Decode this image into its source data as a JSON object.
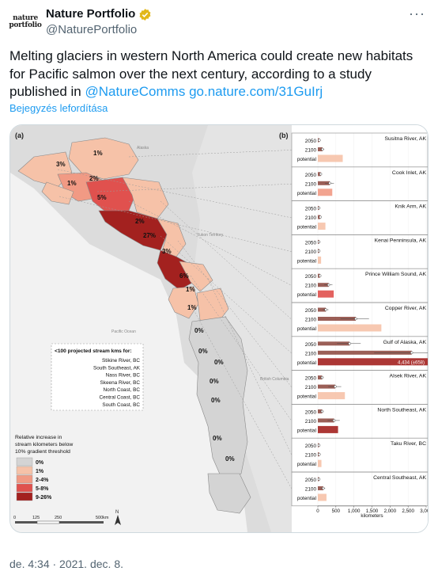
{
  "tweet": {
    "avatar_top": "nature",
    "avatar_bottom": "portfolio",
    "display_name": "Nature Portfolio",
    "handle": "@NaturePortfolio",
    "more_label": "···",
    "text_main": "Melting glaciers in western North America could create new habitats for Pacific salmon over the next century, according to a study published in",
    "mention": "@NatureComms",
    "link": "go.nature.com/31GuIrj",
    "translate_label": "Bejegyzés lefordítása",
    "timestamp": "de. 4:34 · 2021. dec. 8."
  },
  "figure": {
    "panel_a": "(a)",
    "panel_b": "(b)",
    "map_percent_labels": [
      "1%",
      "3%",
      "1%",
      "2%",
      "5%",
      "2%",
      "27%",
      "3%",
      "6%",
      "1%",
      "1%",
      "0%",
      "0%",
      "0%",
      "0%",
      "0%",
      "0%",
      "0%"
    ],
    "map_region_labels": [
      "Alaska",
      "Yukon Territory",
      "Pacific Ocean",
      "British Columbia"
    ],
    "small_rivers_title": "<100 projected stream kms for:",
    "small_rivers": [
      "Stikine River, BC",
      "South Southeast, AK",
      "Nass River, BC",
      "Skeena River, BC",
      "North Coast, BC",
      "Central Coast, BC",
      "South Coast, BC"
    ],
    "legend_title": "Relative increase in stream kilometers below 10% gradient threshold",
    "legend_items": [
      {
        "label": "0%",
        "color": "#d4d4d4"
      },
      {
        "label": "1%",
        "color": "#f6c2a8"
      },
      {
        "label": "2-4%",
        "color": "#f19a84"
      },
      {
        "label": "5-8%",
        "color": "#e0514e"
      },
      {
        "label": "9-26%",
        "color": "#a3211f"
      }
    ],
    "scale_labels": [
      "0",
      "125",
      "250",
      "500km"
    ],
    "north_label": "N",
    "row_labels": [
      "2050",
      "2100",
      "potential"
    ],
    "x_axis_label": "kilometers",
    "x_ticks": [
      "0",
      "500",
      "1,000",
      "1,500",
      "2,000",
      "2,500",
      "3,000"
    ],
    "overflow_label": "4,434 (±658)"
  },
  "chart_data": {
    "type": "bar",
    "xlabel": "kilometers",
    "xlim": [
      0,
      3000
    ],
    "rows": [
      "2050",
      "2100",
      "potential"
    ],
    "regions": [
      {
        "name": "Susitna River, AK",
        "color": "#f6c2a8",
        "values": [
          40,
          130,
          690
        ]
      },
      {
        "name": "Cook Inlet, AK",
        "color": "#f19a84",
        "values": [
          80,
          330,
          400
        ]
      },
      {
        "name": "Knik Arm, AK",
        "color": "#f6c2a8",
        "values": [
          20,
          70,
          210
        ]
      },
      {
        "name": "Kenai Penninsula, AK",
        "color": "#f6c2a8",
        "values": [
          10,
          30,
          90
        ]
      },
      {
        "name": "Prince William Sound, AK",
        "color": "#e0514e",
        "values": [
          60,
          300,
          440
        ]
      },
      {
        "name": "Copper River, AK",
        "color": "#f6c2a8",
        "values": [
          220,
          1050,
          1760
        ]
      },
      {
        "name": "Gulf of Alaska, AK",
        "color": "#a3211f",
        "values": [
          880,
          2600,
          4434
        ]
      },
      {
        "name": "Alsek River, AK",
        "color": "#f6c2a8",
        "values": [
          120,
          480,
          750
        ]
      },
      {
        "name": "North Southeast, AK",
        "color": "#a3211f",
        "values": [
          120,
          450,
          560
        ]
      },
      {
        "name": "Taku River, BC",
        "color": "#f6c2a8",
        "values": [
          10,
          40,
          100
        ]
      },
      {
        "name": "Central Southeast, AK",
        "color": "#f6c2a8",
        "values": [
          30,
          150,
          240
        ]
      }
    ]
  }
}
